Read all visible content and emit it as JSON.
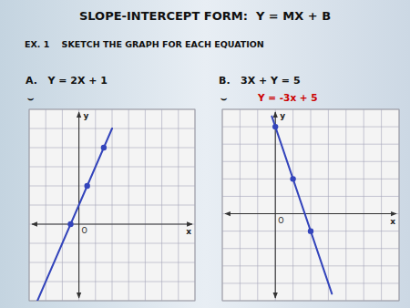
{
  "title": "SLOPE-INTERCEPT FORM:  Y = MX + B",
  "subtitle": "EX. 1    SKETCH THE GRAPH FOR EACH EQUATION",
  "chart_data": [
    {
      "type": "line",
      "title": "A.   Y = 2X + 1",
      "annotations": [
        {
          "text": "⌣"
        }
      ],
      "x_label": "x",
      "y_label": "y",
      "origin_label": "O",
      "xlim": [
        -3,
        7
      ],
      "ylim": [
        -4,
        6
      ],
      "xticks": [
        -3,
        -2,
        -1,
        0,
        1,
        2,
        3,
        4,
        5,
        6,
        7
      ],
      "yticks": [
        -4,
        -3,
        -2,
        -1,
        0,
        1,
        2,
        3,
        4,
        5,
        6
      ],
      "grid": true,
      "tick_labels": false,
      "series": [
        {
          "type": "line",
          "color": "#3344bb",
          "x": [
            -2.5,
            2.0
          ],
          "values": [
            -4.0,
            5.0
          ]
        },
        {
          "type": "scatter",
          "color": "#3344bb",
          "x": [
            -0.5,
            0.5,
            1.5
          ],
          "values": [
            0.0,
            2.0,
            4.0
          ]
        }
      ]
    },
    {
      "type": "line",
      "title": "B.   3X + Y = 5",
      "annotations": [
        {
          "text": "⌣"
        },
        {
          "text": "Y = -3x + 5",
          "color": "#cc0000"
        }
      ],
      "x_label": "x",
      "y_label": "y",
      "origin_label": "O",
      "xlim": [
        -3,
        7
      ],
      "ylim": [
        -5,
        6
      ],
      "xticks": [
        -3,
        -2,
        -1,
        0,
        1,
        2,
        3,
        4,
        5,
        6,
        7
      ],
      "yticks": [
        -5,
        -4,
        -3,
        -2,
        -1,
        0,
        1,
        2,
        3,
        4,
        5,
        6
      ],
      "grid": true,
      "tick_labels": false,
      "series": [
        {
          "type": "line",
          "color": "#3344bb",
          "x": [
            -0.2,
            3.2
          ],
          "values": [
            5.6,
            -4.6
          ]
        },
        {
          "type": "scatter",
          "color": "#3344bb",
          "x": [
            0,
            1,
            2
          ],
          "values": [
            5,
            2,
            -1
          ]
        }
      ]
    }
  ]
}
